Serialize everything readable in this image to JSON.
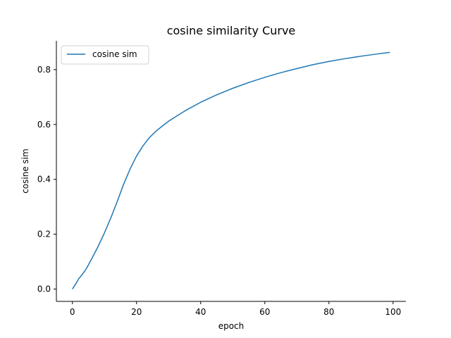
{
  "chart_data": {
    "type": "line",
    "title": "cosine similarity Curve",
    "xlabel": "epoch",
    "ylabel": "cosine sim",
    "xlim": [
      -5,
      104
    ],
    "ylim": [
      -0.045,
      0.905
    ],
    "x_ticks": [
      0,
      20,
      40,
      60,
      80,
      100
    ],
    "y_ticks": [
      0.0,
      0.2,
      0.4,
      0.6,
      0.8
    ],
    "x_tick_labels": [
      "0",
      "20",
      "40",
      "60",
      "80",
      "100"
    ],
    "y_tick_labels": [
      "0.0",
      "0.2",
      "0.4",
      "0.6",
      "0.8"
    ],
    "grid": false,
    "legend_position": "top-left",
    "series": [
      {
        "name": "cosine sim",
        "color": "#1f77b4",
        "x": [
          0,
          1,
          2,
          3,
          4,
          5,
          6,
          8,
          10,
          12,
          14,
          16,
          18,
          20,
          22,
          24,
          26,
          28,
          30,
          35,
          40,
          45,
          50,
          55,
          60,
          65,
          70,
          75,
          80,
          85,
          90,
          95,
          99
        ],
        "y": [
          0.0,
          0.018,
          0.038,
          0.052,
          0.068,
          0.088,
          0.11,
          0.155,
          0.205,
          0.26,
          0.32,
          0.383,
          0.438,
          0.485,
          0.522,
          0.552,
          0.575,
          0.594,
          0.612,
          0.649,
          0.681,
          0.708,
          0.732,
          0.753,
          0.772,
          0.789,
          0.804,
          0.818,
          0.83,
          0.84,
          0.849,
          0.857,
          0.863
        ]
      }
    ]
  }
}
